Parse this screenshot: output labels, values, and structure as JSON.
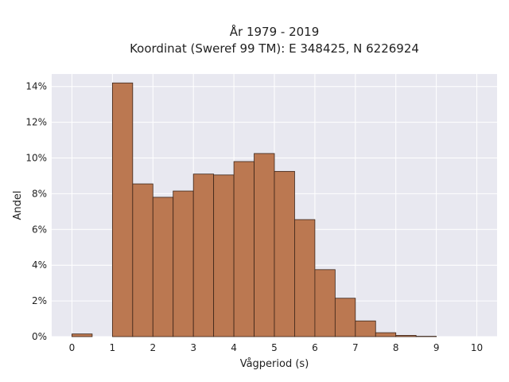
{
  "chart_data": {
    "type": "bar",
    "title_line1": "År 1979 - 2019",
    "title_line2": "Koordinat (Sweref 99 TM): E 348425, N 6226924",
    "xlabel": "Vågperiod (s)",
    "ylabel": "Andel",
    "xlim": [
      -0.5,
      10.5
    ],
    "ylim": [
      0,
      14.7
    ],
    "x_ticks": [
      0,
      1,
      2,
      3,
      4,
      5,
      6,
      7,
      8,
      9,
      10
    ],
    "x_tick_labels": [
      "0",
      "1",
      "2",
      "3",
      "4",
      "5",
      "6",
      "7",
      "8",
      "9",
      "10"
    ],
    "y_ticks": [
      0,
      2,
      4,
      6,
      8,
      10,
      12,
      14
    ],
    "y_tick_labels": [
      "0%",
      "2%",
      "4%",
      "6%",
      "8%",
      "10%",
      "12%",
      "14%"
    ],
    "bin_width": 0.5,
    "bins": [
      {
        "x0": 0.0,
        "value": 0.15
      },
      {
        "x0": 1.0,
        "value": 14.2
      },
      {
        "x0": 1.5,
        "value": 8.55
      },
      {
        "x0": 2.0,
        "value": 7.8
      },
      {
        "x0": 2.5,
        "value": 8.15
      },
      {
        "x0": 3.0,
        "value": 9.1
      },
      {
        "x0": 3.5,
        "value": 9.05
      },
      {
        "x0": 4.0,
        "value": 9.8
      },
      {
        "x0": 4.5,
        "value": 10.25
      },
      {
        "x0": 5.0,
        "value": 9.25
      },
      {
        "x0": 5.5,
        "value": 6.55
      },
      {
        "x0": 6.0,
        "value": 3.75
      },
      {
        "x0": 6.5,
        "value": 2.15
      },
      {
        "x0": 7.0,
        "value": 0.88
      },
      {
        "x0": 7.5,
        "value": 0.22
      },
      {
        "x0": 8.0,
        "value": 0.07
      },
      {
        "x0": 8.5,
        "value": 0.02
      }
    ],
    "grid": true,
    "legend": "none",
    "colors": {
      "bar_fill": "#bb7851",
      "bar_stroke": "#3b2418",
      "plot_background": "#e8e8f0",
      "grid": "#ffffff"
    }
  }
}
